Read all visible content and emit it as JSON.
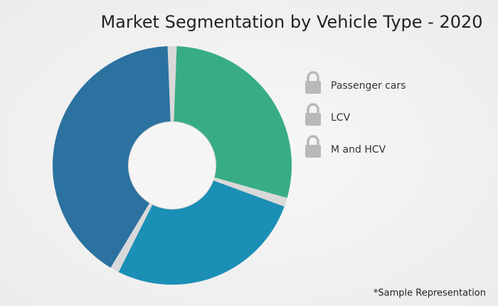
{
  "chart_data": {
    "type": "donut",
    "title": "Market Segmentation by Vehicle Type - 2020",
    "categories": [
      "Passenger cars",
      "LCV",
      "M and HCV"
    ],
    "values": [
      30,
      28,
      42
    ],
    "colors": [
      "#38ad84",
      "#1b8fb6",
      "#2b72a0"
    ],
    "note": "*Sample Representation"
  }
}
